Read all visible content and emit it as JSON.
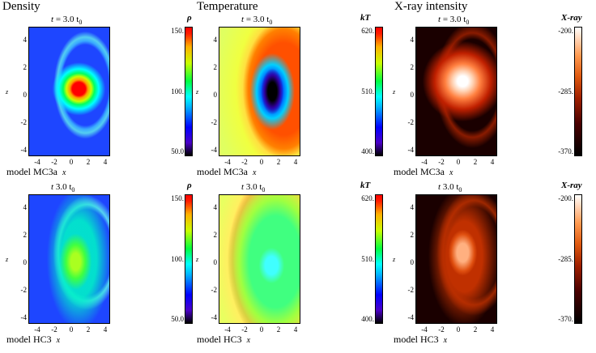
{
  "columns": [
    {
      "title": "Density",
      "colorbar": {
        "symbol": "ρ",
        "max": "150.",
        "mid": "100.",
        "min": "50.0"
      }
    },
    {
      "title": "Temperature",
      "colorbar": {
        "symbol": "kT",
        "max": "620.",
        "mid": "510.",
        "min": "400."
      }
    },
    {
      "title": "X-ray intensity",
      "colorbar": {
        "symbol": "X-ray",
        "max": "-200.",
        "mid": "-285.",
        "min": "-370."
      }
    }
  ],
  "rows": [
    {
      "panel_title": {
        "t": "t",
        "eq": " = 3.0 t",
        "sub": "0"
      },
      "model": "model MC3a"
    },
    {
      "panel_title": {
        "t": "t",
        "eq": "   3.0 t",
        "sub": "0"
      },
      "model": "model HC3"
    }
  ],
  "axes": {
    "xlabel": "x",
    "ylabel": "z",
    "x_ticks": [
      "-4",
      "-2",
      "0",
      "2",
      "4"
    ],
    "y_ticks": [
      "4",
      "2",
      "0",
      "-2",
      "-4"
    ]
  },
  "colormaps": {
    "jet": [
      "#000000",
      "#0000ff",
      "#00ffff",
      "#00ff40",
      "#ffff00",
      "#ff0000"
    ],
    "heat": [
      "#000000",
      "#a02000",
      "#ff9a50",
      "#ffffff"
    ]
  }
}
